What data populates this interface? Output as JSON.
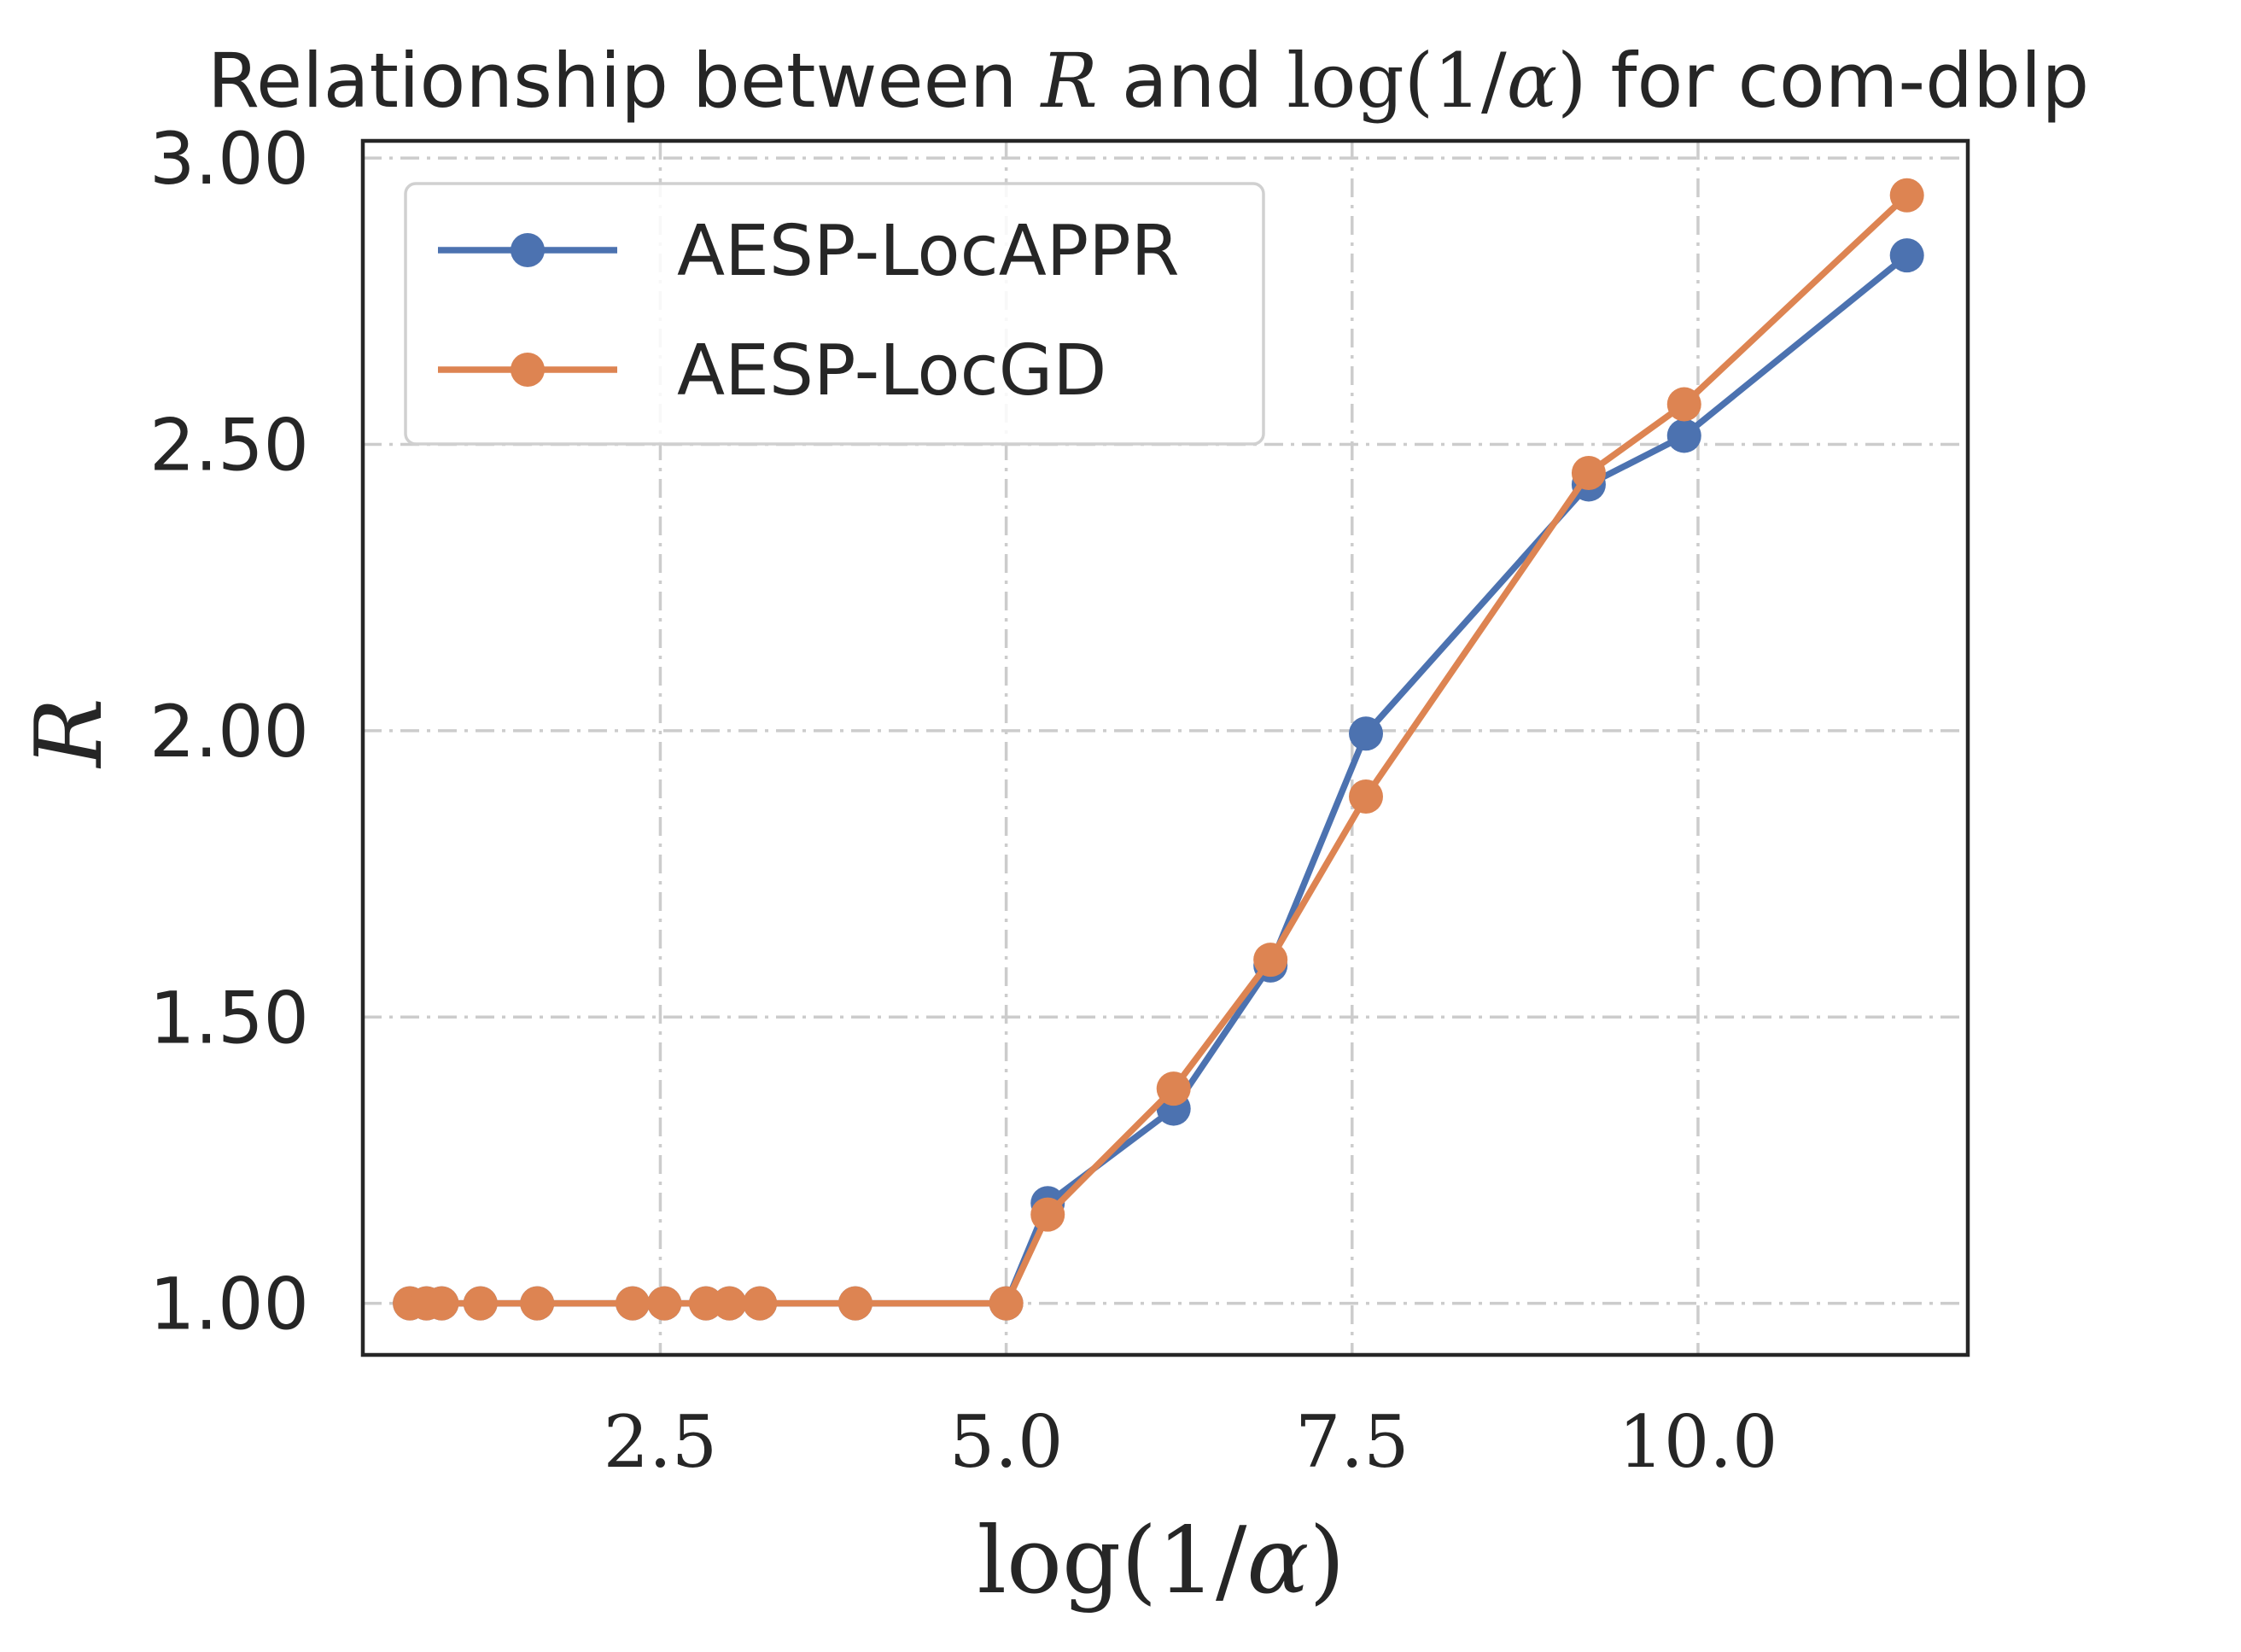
{
  "chart_data": {
    "type": "line",
    "title_parts": [
      {
        "text": "Relationship between ",
        "style": "sans"
      },
      {
        "text": "R",
        "style": "math"
      },
      {
        "text": " and ",
        "style": "sans"
      },
      {
        "text": "log(1/",
        "style": "math-upright"
      },
      {
        "text": "α",
        "style": "math"
      },
      {
        "text": ")",
        "style": "math-upright"
      },
      {
        "text": " for com-dblp",
        "style": "sans"
      }
    ],
    "xlabel_parts": [
      {
        "text": "log(1/",
        "style": "math-upright"
      },
      {
        "text": "α",
        "style": "math"
      },
      {
        "text": ")",
        "style": "math-upright"
      }
    ],
    "ylabel": "R",
    "xlim": [
      0.35,
      11.95
    ],
    "ylim": [
      0.91,
      3.03
    ],
    "x_ticks": [
      2.5,
      5.0,
      7.5,
      10.0
    ],
    "x_tick_labels": [
      "2.5",
      "5.0",
      "7.5",
      "10.0"
    ],
    "y_ticks": [
      1.0,
      1.5,
      2.0,
      2.5,
      3.0
    ],
    "y_tick_labels": [
      "1.00",
      "1.50",
      "2.00",
      "2.50",
      "3.00"
    ],
    "grid": true,
    "legend_position": "upper-left",
    "series": [
      {
        "name": "AESP-LocAPPR",
        "color": "#4c72b0",
        "x": [
          0.69,
          0.81,
          0.92,
          1.2,
          1.61,
          2.3,
          2.53,
          2.83,
          3.0,
          3.22,
          3.91,
          5.0,
          5.3,
          6.21,
          6.91,
          7.6,
          9.21,
          9.9,
          11.51
        ],
        "y": [
          1.0,
          1.0,
          1.0,
          1.0,
          1.0,
          1.0,
          1.0,
          1.0,
          1.0,
          1.0,
          1.0,
          1.0,
          1.175,
          1.34,
          1.59,
          1.995,
          2.43,
          2.515,
          2.83
        ]
      },
      {
        "name": "AESP-LocGD",
        "color": "#dd8452",
        "x": [
          0.69,
          0.81,
          0.92,
          1.2,
          1.61,
          2.3,
          2.53,
          2.83,
          3.0,
          3.22,
          3.91,
          5.0,
          5.3,
          6.21,
          6.91,
          7.6,
          9.21,
          9.9,
          11.51
        ],
        "y": [
          1.0,
          1.0,
          1.0,
          1.0,
          1.0,
          1.0,
          1.0,
          1.0,
          1.0,
          1.0,
          1.0,
          1.0,
          1.155,
          1.375,
          1.6,
          1.885,
          2.45,
          2.57,
          2.935
        ]
      }
    ]
  }
}
